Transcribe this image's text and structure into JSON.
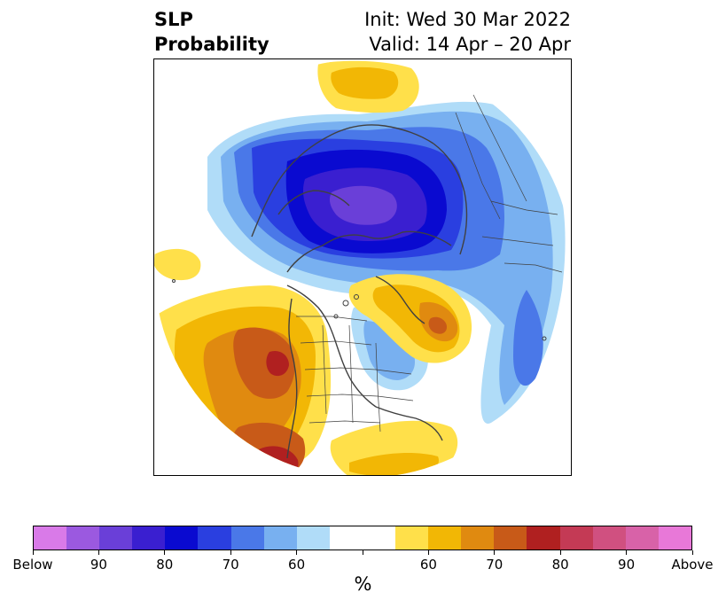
{
  "title": {
    "left_line1": "SLP",
    "left_line2": "Probability",
    "right_line1": "Init: Wed 30 Mar 2022",
    "right_line2": "Valid: 14 Apr – 20 Apr"
  },
  "colorbar": {
    "colors": [
      "#d97ae8",
      "#9b59e0",
      "#6a3fd8",
      "#3a1fd0",
      "#0a0ad0",
      "#2a3fe0",
      "#4a78e8",
      "#78b0f0",
      "#b0dcf8",
      "#ffffff",
      "#ffffff",
      "#ffe04a",
      "#f2b705",
      "#e08a10",
      "#c85a18",
      "#b02020",
      "#c43a55",
      "#d05080",
      "#d862a8",
      "#e878d8"
    ],
    "tick_labels": [
      "Below",
      "90",
      "80",
      "70",
      "60",
      "",
      "60",
      "70",
      "80",
      "90",
      "Above"
    ],
    "label": "%"
  },
  "palette": {
    "blue_pale": "#b0dcf8",
    "blue_light": "#78b0f0",
    "blue_mid": "#4a78e8",
    "blue_deep": "#0a0ad0",
    "blue_dark": "#3a1fd0",
    "purple": "#6a3fd8",
    "yellow": "#ffe04a",
    "gold": "#f2b705",
    "orange": "#e08a10",
    "rust": "#c85a18",
    "red": "#b02020",
    "coast": "#404040"
  }
}
